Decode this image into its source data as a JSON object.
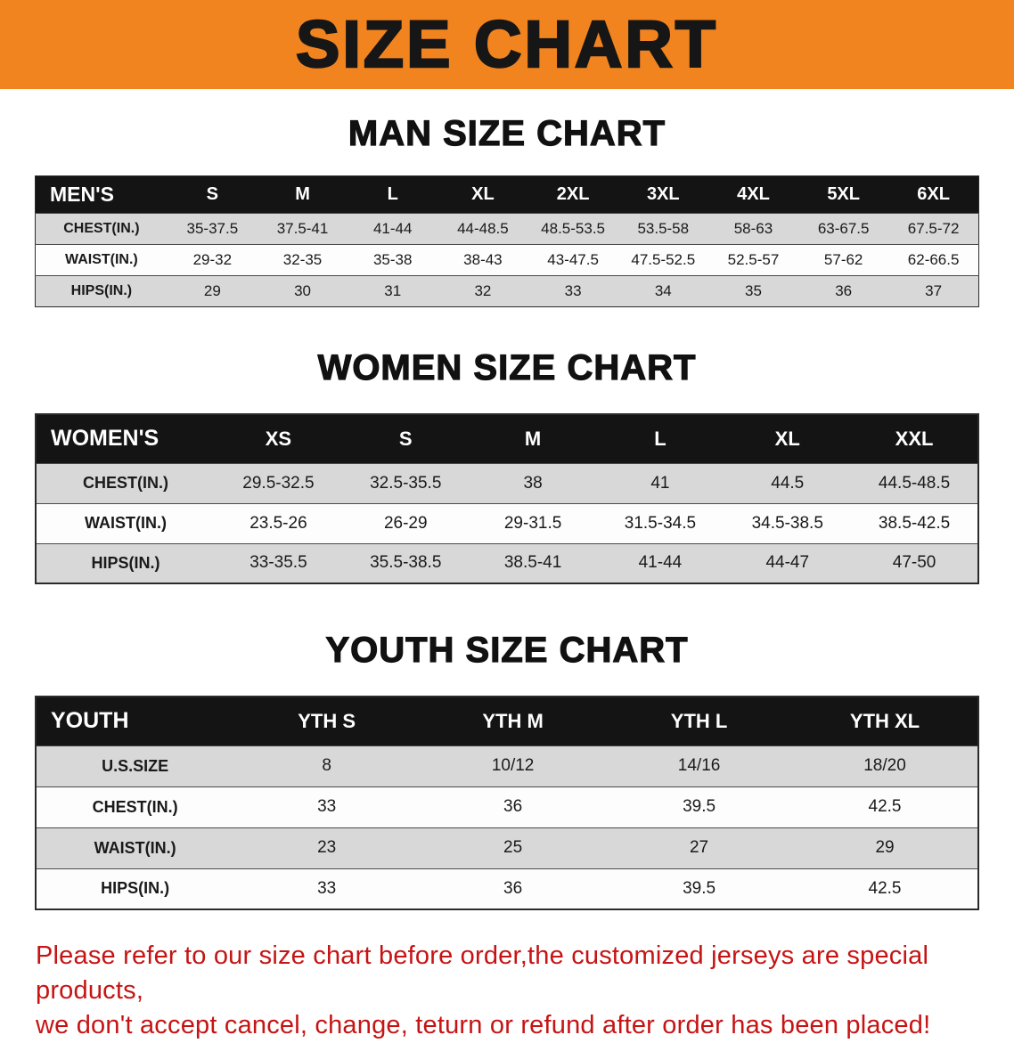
{
  "banner": {
    "title": "SIZE CHART"
  },
  "colors": {
    "banner_orange": "#f28420",
    "header_black": "#141414",
    "stripe_gray": "#d8d8d8",
    "disclaimer_red": "#c61414"
  },
  "sections": [
    {
      "heading": "MAN SIZE CHART",
      "table": {
        "header": [
          "MEN'S",
          "S",
          "M",
          "L",
          "XL",
          "2XL",
          "3XL",
          "4XL",
          "5XL",
          "6XL"
        ],
        "rows": [
          {
            "label": "CHEST(IN.)",
            "values": [
              "35-37.5",
              "37.5-41",
              "41-44",
              "44-48.5",
              "48.5-53.5",
              "53.5-58",
              "58-63",
              "63-67.5",
              "67.5-72"
            ]
          },
          {
            "label": "WAIST(IN.)",
            "values": [
              "29-32",
              "32-35",
              "35-38",
              "38-43",
              "43-47.5",
              "47.5-52.5",
              "52.5-57",
              "57-62",
              "62-66.5"
            ]
          },
          {
            "label": "HIPS(IN.)",
            "values": [
              "29",
              "30",
              "31",
              "32",
              "33",
              "34",
              "35",
              "36",
              "37"
            ]
          }
        ]
      }
    },
    {
      "heading": "WOMEN SIZE CHART",
      "table": {
        "header": [
          "WOMEN'S",
          "XS",
          "S",
          "M",
          "L",
          "XL",
          "XXL"
        ],
        "rows": [
          {
            "label": "CHEST(IN.)",
            "values": [
              "29.5-32.5",
              "32.5-35.5",
              "38",
              "41",
              "44.5",
              "44.5-48.5"
            ]
          },
          {
            "label": "WAIST(IN.)",
            "values": [
              "23.5-26",
              "26-29",
              "29-31.5",
              "31.5-34.5",
              "34.5-38.5",
              "38.5-42.5"
            ]
          },
          {
            "label": "HIPS(IN.)",
            "values": [
              "33-35.5",
              "35.5-38.5",
              "38.5-41",
              "41-44",
              "44-47",
              "47-50"
            ]
          }
        ]
      }
    },
    {
      "heading": "YOUTH SIZE CHART",
      "table": {
        "header": [
          "YOUTH",
          "YTH S",
          "YTH M",
          "YTH L",
          "YTH XL"
        ],
        "rows": [
          {
            "label": "U.S.SIZE",
            "values": [
              "8",
              "10/12",
              "14/16",
              "18/20"
            ]
          },
          {
            "label": "CHEST(IN.)",
            "values": [
              "33",
              "36",
              "39.5",
              "42.5"
            ]
          },
          {
            "label": "WAIST(IN.)",
            "values": [
              "23",
              "25",
              "27",
              "29"
            ]
          },
          {
            "label": "HIPS(IN.)",
            "values": [
              "33",
              "36",
              "39.5",
              "42.5"
            ]
          }
        ]
      }
    }
  ],
  "disclaimer": {
    "line1": "Please refer to our size chart before order,the customized jerseys are special products,",
    "line2": "we don't accept cancel, change, teturn or refund after order has been placed!"
  }
}
